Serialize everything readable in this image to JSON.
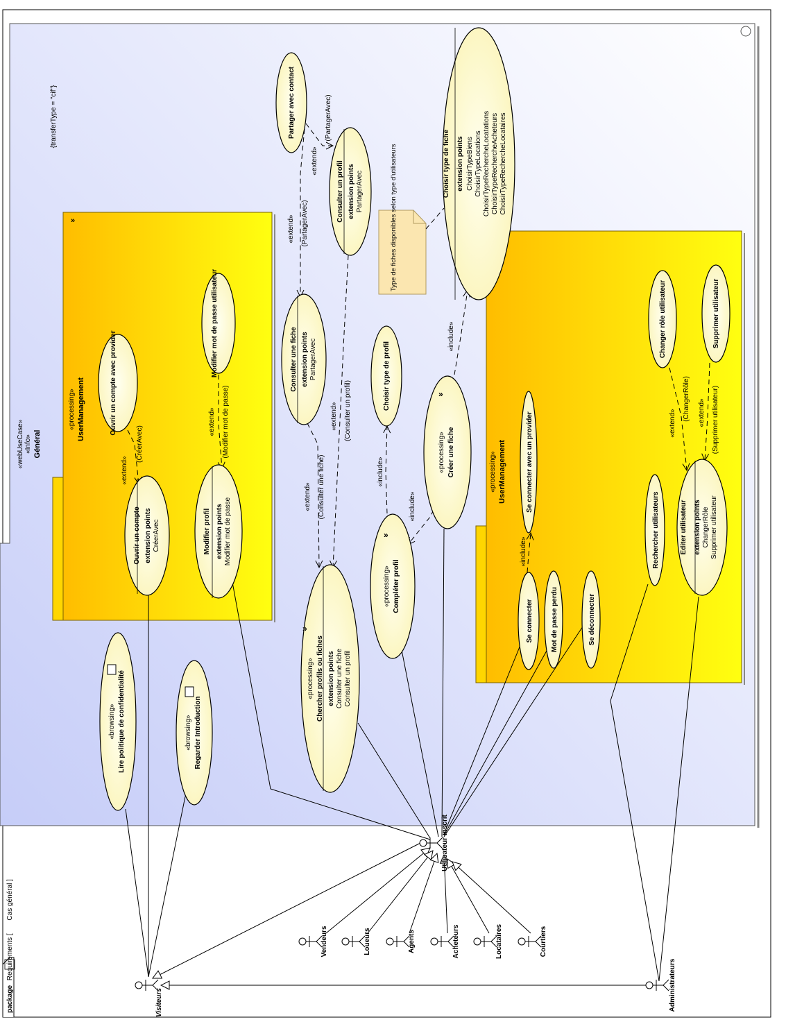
{
  "frame": {
    "keyword": "package",
    "name": "Requirements [",
    "diagram": "Cas général ]"
  },
  "main_package": {
    "stereo1": "«webUseCase»",
    "stereo2": "«Info»",
    "name": "Général",
    "constraint": "{transferType = \"cif\"}"
  },
  "pkg_user_mgmt_1": {
    "stereo": "«processing»",
    "name": "UserManagement"
  },
  "pkg_user_mgmt_2": {
    "stereo": "«processing»",
    "name": "UserManagement"
  },
  "use_cases": {
    "ouvrir_compte_provider": "Ouvrir un compte avec provider",
    "ouvrir_compte": "Ouvrir un compte",
    "ouvrir_compte_ep": "extension points",
    "ouvrir_compte_ep1": "CréerAvec",
    "modifier_mdp": "Modifier mot de passe utilisateur",
    "modifier_profil": "Modifier profil",
    "modifier_profil_ep": "extension points",
    "modifier_profil_ep1": "Modifier mot de passe",
    "partager_contact": "Partager avec contact",
    "consulter_profil": "Consulter un profil",
    "consulter_profil_ep": "extension points",
    "consulter_profil_ep1": "PartagerAvec",
    "consulter_fiche": "Consulter une fiche",
    "consulter_fiche_ep": "extension points",
    "consulter_fiche_ep1": "PartagerAvec",
    "choisir_type_profil": "Choisir type de profil",
    "choisir_type_fiche": "Choisir type de fiche",
    "choisir_type_fiche_ep": "extension points",
    "choisir_type_fiche_eps": [
      "ChoisirTypeBiens",
      "ChoisirTypeLocations",
      "ChoisirTypeRechercheLocatations",
      "ChoisirTypeRechercheAcheteurs",
      "ChoisirTypeRechercheLocataires"
    ],
    "creer_fiche_stereo": "«processing»",
    "creer_fiche": "Créer une fiche",
    "completer_profil_stereo": "«processing»",
    "completer_profil": "Compléter profil",
    "chercher_stereo": "«processing»",
    "chercher": "Chercher profils ou fiches",
    "chercher_ep": "extension points",
    "chercher_ep1": "Consulter une fiche",
    "chercher_ep2": "Consulter un profil",
    "lire_politique_stereo": "«browsing»",
    "lire_politique": "Lire politique de confidentialité",
    "regarder_intro_stereo": "«browsing»",
    "regarder_intro": "Regarder Introduction",
    "se_connecter_provider": "Se connecter avec un provider",
    "se_connecter": "Se connecter",
    "mot_de_passe_perdu": "Mot de passe perdu",
    "se_deconnecter": "Se déconnecter",
    "rechercher_utilisateurs": "Rechercher utilisateurs",
    "editer_utilisateur": "Editer utilisateur",
    "editer_ep": "extension points",
    "editer_ep1": "ChangerRôle",
    "editer_ep2": "Supprimer utilisateur",
    "changer_role": "Changer rôle utilisateur",
    "supprimer_utilisateur": "Supprimer utilisateur"
  },
  "note": "Type de fiches disponibles selon type d'utilisateurs",
  "relations": {
    "extend": "«extend»",
    "include": "«include»",
    "cond_creer_avec": "(CréerAvec)",
    "cond_modifier_mdp": "(Modifier mot de passe)",
    "cond_partager_avec": "(PartagerAvec)",
    "cond_consulter_fiche": "(Consulter une fiche)",
    "cond_consulter_profil": "(Consulter un profil)",
    "cond_changer_role": "(ChangerRôle)",
    "cond_supprimer": "(Supprimer utilisateur)"
  },
  "actors": {
    "visiteurs": "Visiteurs",
    "utilisateur_inscrit": "Utilisateur inscrit",
    "vendeurs": "Vendeurs",
    "loueurs": "Loueurs",
    "agents": "Agents",
    "acheteurs": "Acheteurs",
    "locataires": "Locataires",
    "courtiers": "Courtiers",
    "administrateurs": "Administrateurs"
  }
}
